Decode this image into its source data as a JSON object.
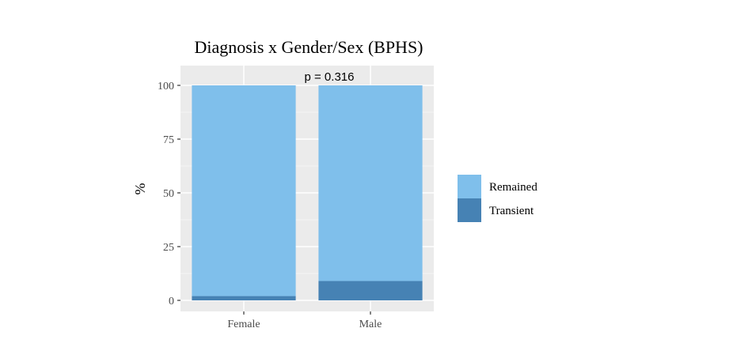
{
  "chart_data": {
    "type": "bar",
    "stacked": true,
    "title": "Diagnosis x Gender/Sex (BPHS)",
    "ylabel": "%",
    "xlabel": "",
    "categories": [
      "Female",
      "Male"
    ],
    "ylim": [
      0,
      100
    ],
    "yticks": [
      0,
      25,
      50,
      75,
      100
    ],
    "grid": true,
    "legend_position": "right",
    "annotation": "p = 0.316",
    "series": [
      {
        "name": "Transient",
        "values": [
          2,
          9
        ],
        "color": "#4682B4"
      },
      {
        "name": "Remained",
        "values": [
          98,
          91
        ],
        "color": "#7FBFEB"
      }
    ],
    "legend_order": [
      "Remained",
      "Transient"
    ]
  }
}
